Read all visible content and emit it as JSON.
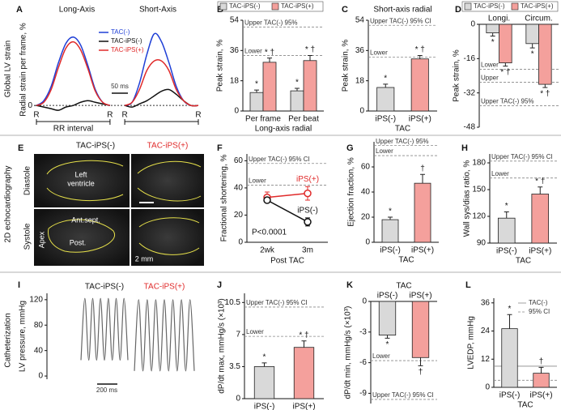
{
  "row_labels": [
    "Global LV strain",
    "2D echocardiography",
    "Catheterization"
  ],
  "chart_data": [
    {
      "type": "line",
      "label": "A",
      "titles": [
        "Long-Axis",
        "Short-Axis"
      ],
      "ylabel": "Radial strain per frame, %",
      "ylim": [
        -5,
        50
      ],
      "yticks": [
        0
      ],
      "series": [
        {
          "name": "TAC(-)",
          "color": "#1f3fd6",
          "values": [
            0,
            3,
            12,
            27,
            39,
            43,
            38,
            25,
            10,
            2,
            0,
            null,
            0,
            2,
            14,
            32,
            45,
            40,
            27,
            12,
            3,
            0,
            0
          ]
        },
        {
          "name": "TAC-iPS(-)",
          "color": "#111111",
          "values": [
            0,
            -1,
            -2,
            -3,
            -1,
            0,
            2,
            3,
            2,
            1,
            0,
            null,
            0,
            -1,
            1,
            3,
            6,
            9,
            10,
            7,
            3,
            0,
            0
          ]
        },
        {
          "name": "TAC-iPS(+)",
          "color": "#e02a2a",
          "values": [
            0,
            2,
            10,
            24,
            36,
            40,
            35,
            23,
            9,
            2,
            0,
            null,
            0,
            2,
            10,
            22,
            28,
            28,
            22,
            10,
            3,
            0,
            0
          ]
        }
      ],
      "scale_label": "50 ms",
      "r_marks": [
        "R",
        "R",
        "R",
        "R"
      ],
      "interval_label": "RR interval"
    },
    {
      "type": "bar",
      "label": "B",
      "ylabel": "Peak strain, %",
      "categories": [
        "Per frame",
        "Per beat"
      ],
      "xgroup": "Long-axis radial",
      "ylim": [
        0,
        54
      ],
      "yticks": [
        0,
        18,
        36,
        54
      ],
      "ref_lines": [
        {
          "label": "Upper TAC(-) 95%",
          "value": 50
        },
        {
          "label": "Lower",
          "value": 33
        }
      ],
      "series": [
        {
          "name": "TAC-iPS(-)",
          "color": "#d9d9d9",
          "values": [
            11,
            12
          ],
          "errors": [
            1.5,
            1.5
          ],
          "annotations": [
            "*",
            "*"
          ]
        },
        {
          "name": "TAC-iPS(+)",
          "color": "#f4a09c",
          "values": [
            29,
            30
          ],
          "errors": [
            2.5,
            3
          ],
          "annotations": [
            "* †",
            "* †"
          ]
        }
      ]
    },
    {
      "type": "bar",
      "label": "C",
      "title": "Short-axis radial",
      "ylabel": "Peak strain, %",
      "categories": [
        "iPS(-)",
        "iPS(+)"
      ],
      "xgroup": "TAC",
      "colors": [
        "#d9d9d9",
        "#f4a09c"
      ],
      "values": [
        14,
        31
      ],
      "errors": [
        2,
        2
      ],
      "annotations": [
        "*",
        "* †"
      ],
      "ylim": [
        0,
        54
      ],
      "yticks": [
        0,
        18,
        36,
        54
      ],
      "ref_lines": [
        {
          "label": "Upper TAC(-) 95% CI",
          "value": 51
        },
        {
          "label": "Lower",
          "value": 32
        }
      ]
    },
    {
      "type": "bar",
      "label": "D",
      "ylabel": "Peak strain, %",
      "categories": [
        "Longi.",
        "Circum."
      ],
      "ylim": [
        -48,
        0
      ],
      "yticks": [
        0,
        -16,
        -32,
        -48
      ],
      "ref_lines": [
        {
          "label": "Lower",
          "value": -21
        },
        {
          "label": "Upper",
          "value": -27
        },
        {
          "label": "Upper TAC(-) 95%",
          "value": -38
        }
      ],
      "series": [
        {
          "name": "TAC-iPS(-)",
          "color": "#d9d9d9",
          "values": [
            -4,
            -9
          ],
          "errors": [
            1.5,
            2
          ],
          "annotations": [
            "*",
            "*"
          ]
        },
        {
          "name": "TAC-iPS(+)",
          "color": "#f4a09c",
          "values": [
            -18,
            -28
          ],
          "errors": [
            1.5,
            1.5
          ],
          "annotations": [
            "* †",
            "* †"
          ]
        }
      ]
    },
    {
      "type": "line",
      "label": "F",
      "ylabel": "Fractional shortening, %",
      "categories": [
        "2wk",
        "3m"
      ],
      "xgroup": "Post TAC",
      "ylim": [
        0,
        65
      ],
      "yticks": [
        0,
        20,
        40,
        60
      ],
      "ref_lines": [
        {
          "label": "Upper TAC(-) 95% CI",
          "value": 58
        },
        {
          "label": "Lower",
          "value": 42
        }
      ],
      "series": [
        {
          "name": "iPS(+)",
          "color": "#e02a2a",
          "values": [
            33,
            36
          ],
          "errors": [
            4,
            5
          ]
        },
        {
          "name": "iPS(-)",
          "color": "#111111",
          "values": [
            31,
            15
          ],
          "errors": [
            2,
            3
          ]
        }
      ],
      "note": "P<0.0001"
    },
    {
      "type": "bar",
      "label": "G",
      "ylabel": "Ejection fraction, %",
      "categories": [
        "iPS(-)",
        "iPS(+)"
      ],
      "xgroup": "TAC",
      "colors": [
        "#d9d9d9",
        "#f4a09c"
      ],
      "values": [
        18,
        47
      ],
      "errors": [
        2,
        7
      ],
      "annotations": [
        "*",
        "†"
      ],
      "ylim": [
        0,
        80
      ],
      "yticks": [
        0,
        20,
        40,
        60
      ],
      "ref_lines": [
        {
          "label": "Upper TAC(-) 95%",
          "value": 77
        },
        {
          "label": "Lower",
          "value": 69
        }
      ]
    },
    {
      "type": "bar",
      "label": "H",
      "ylabel": "Wall sys/dias ratio, %",
      "categories": [
        "iPS(-)",
        "iPS(+)"
      ],
      "xgroup": "TAC",
      "colors": [
        "#d9d9d9",
        "#f4a09c"
      ],
      "values": [
        118,
        145
      ],
      "errors": [
        7,
        8
      ],
      "annotations": [
        "*",
        "* †"
      ],
      "ylim": [
        90,
        190
      ],
      "yticks": [
        90,
        120,
        150,
        180
      ],
      "ref_lines": [
        {
          "label": "Upper TAC(-) 95% CI",
          "value": 182
        },
        {
          "label": "Lower",
          "value": 163
        }
      ]
    },
    {
      "type": "trace",
      "label": "I",
      "titles": [
        "TAC-iPS(-)",
        "TAC-iPS(+)"
      ],
      "ylabel": "LV pressure, mmHg",
      "ylim": [
        -5,
        130
      ],
      "yticks": [
        0,
        40,
        80,
        120
      ],
      "scale_label": "200 ms",
      "series": [
        {
          "color": "#666666",
          "values": [
            25,
            122,
            25,
            122,
            25,
            122,
            25,
            122,
            25,
            122,
            25,
            122,
            25
          ]
        },
        {
          "color": "#666666",
          "values": [
            8,
            120,
            8,
            120,
            8,
            120,
            8,
            120,
            8,
            120,
            8,
            120,
            8,
            120,
            8
          ]
        }
      ]
    },
    {
      "type": "bar",
      "label": "J",
      "ylabel": "dP/dt max, mmHg/s (×10³)",
      "categories": [
        "iPS(-)",
        "iPS(+)"
      ],
      "xgroup": "TAC",
      "colors": [
        "#d9d9d9",
        "#f4a09c"
      ],
      "values": [
        3.5,
        5.6
      ],
      "errors": [
        0.4,
        0.7
      ],
      "annotations": [
        "*",
        "* †"
      ],
      "ylim": [
        0,
        11.5
      ],
      "yticks": [
        0,
        3.5,
        7,
        10.5
      ],
      "ref_lines": [
        {
          "label": "Upper TAC(-) 95% CI",
          "value": 10
        },
        {
          "label": "Lower",
          "value": 6.8
        }
      ]
    },
    {
      "type": "bar",
      "label": "K",
      "title": "TAC",
      "ylabel": "dP/dt min, mmHg/s (×10³)",
      "categories": [
        "iPS(-)",
        "iPS(+)"
      ],
      "colors": [
        "#d9d9d9",
        "#f4a09c"
      ],
      "values": [
        -3.3,
        -5.5
      ],
      "errors": [
        0.3,
        0.8
      ],
      "annotations": [
        "*",
        "†"
      ],
      "ylim": [
        -10,
        0
      ],
      "yticks": [
        0,
        -3,
        -6,
        -9
      ],
      "ref_lines": [
        {
          "label": "Lower",
          "value": -5.8
        },
        {
          "label": "Upper TAC(-) 95% CI",
          "value": -9.6
        }
      ]
    },
    {
      "type": "bar",
      "label": "L",
      "ylabel": "LVEDP, mmHg",
      "categories": [
        "iPS(-)",
        "iPS(+)"
      ],
      "xgroup": "TAC",
      "colors": [
        "#d9d9d9",
        "#f4a09c"
      ],
      "values": [
        25,
        6
      ],
      "errors": [
        6,
        2.5
      ],
      "annotations": [
        "*",
        "†"
      ],
      "ylim": [
        0,
        38
      ],
      "yticks": [
        0,
        12,
        24,
        36
      ],
      "ref_lines": [
        {
          "value": 9,
          "style": "solid"
        },
        {
          "value": 3,
          "style": "dashed"
        }
      ],
      "legend": [
        "TAC(-)",
        "95% CI"
      ]
    }
  ],
  "echo_panel": {
    "label": "E",
    "columns": [
      "TAC-iPS(-)",
      "TAC-iPS(+)"
    ],
    "rows": [
      "Diastole",
      "Systole"
    ],
    "annotations": [
      "Left",
      "ventricle",
      "Ant.sept.",
      "Apex",
      "Post."
    ],
    "scale": "2 mm"
  }
}
